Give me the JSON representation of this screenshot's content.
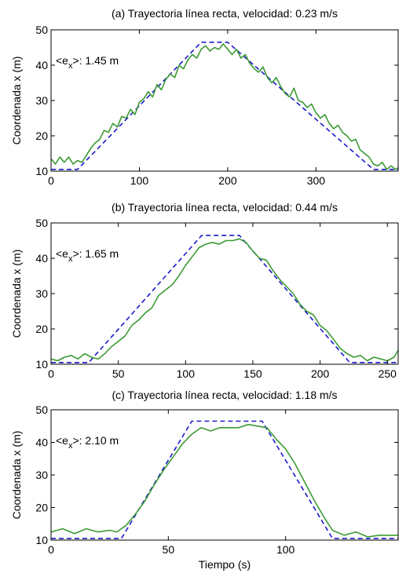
{
  "colors": {
    "reference": "#1a1acc",
    "measured": "#3a9a32",
    "axis": "#000000",
    "background": "#ffffff"
  },
  "chart_data": [
    {
      "type": "line",
      "title": "(a) Trayectoria línea recta, velocidad: 0.23 m/s",
      "ylabel": "Coordenada x (m)",
      "xlabel": "",
      "xlim": [
        0,
        393
      ],
      "ylim": [
        10,
        50
      ],
      "xticks": [
        0,
        100,
        200,
        300
      ],
      "yticks": [
        10,
        20,
        30,
        40,
        50
      ],
      "grid": false,
      "annotation": {
        "prefix": "<e",
        "sub": "x",
        "suffix": ">: 1.45 m"
      },
      "reference_series": {
        "style": "dashed",
        "x": [
          0,
          30,
          170,
          200,
          365,
          393
        ],
        "y": [
          10.5,
          10.5,
          46.5,
          46.5,
          10.5,
          10.5
        ]
      },
      "measured_series": {
        "style": "solid",
        "x": [
          0,
          5,
          10,
          15,
          20,
          25,
          30,
          35,
          40,
          45,
          50,
          55,
          60,
          65,
          70,
          75,
          80,
          85,
          90,
          95,
          100,
          105,
          110,
          115,
          120,
          125,
          130,
          135,
          140,
          145,
          150,
          155,
          160,
          165,
          170,
          175,
          180,
          185,
          190,
          195,
          200,
          205,
          210,
          215,
          220,
          225,
          230,
          235,
          240,
          245,
          250,
          255,
          260,
          265,
          270,
          275,
          280,
          285,
          290,
          295,
          300,
          305,
          310,
          315,
          320,
          325,
          330,
          335,
          340,
          345,
          350,
          355,
          360,
          365,
          370,
          375,
          380,
          385,
          390,
          393
        ],
        "y": [
          13.5,
          12.0,
          14.0,
          12.5,
          14.0,
          12.0,
          13.0,
          12.5,
          14.5,
          16.5,
          18.0,
          19.0,
          21.5,
          21.0,
          23.5,
          22.5,
          25.5,
          25.0,
          27.5,
          26.0,
          29.5,
          30.5,
          32.5,
          31.0,
          34.5,
          33.0,
          36.0,
          37.5,
          36.5,
          40.0,
          39.0,
          41.5,
          43.0,
          42.0,
          44.5,
          45.5,
          44.0,
          45.0,
          44.5,
          46.0,
          44.5,
          43.0,
          44.5,
          42.0,
          43.0,
          40.5,
          39.0,
          38.0,
          39.5,
          36.5,
          35.0,
          36.5,
          34.0,
          32.0,
          31.0,
          33.5,
          30.0,
          29.5,
          28.0,
          29.0,
          26.5,
          25.0,
          26.0,
          23.5,
          22.0,
          23.0,
          21.0,
          20.0,
          18.5,
          19.0,
          16.0,
          15.0,
          14.0,
          12.0,
          11.5,
          12.5,
          10.5,
          11.5,
          10.5,
          11.0
        ]
      }
    },
    {
      "type": "line",
      "title": "(b) Trayectoria línea recta, velocidad: 0.44 m/s",
      "ylabel": "Coordenada x (m)",
      "xlabel": "",
      "xlim": [
        0,
        258
      ],
      "ylim": [
        10,
        50
      ],
      "xticks": [
        0,
        50,
        100,
        150,
        200,
        250
      ],
      "yticks": [
        10,
        20,
        30,
        40,
        50
      ],
      "grid": false,
      "annotation": {
        "prefix": "<e",
        "sub": "x",
        "suffix": ">: 1.65 m"
      },
      "reference_series": {
        "style": "dashed",
        "x": [
          0,
          28,
          112,
          140,
          222,
          258
        ],
        "y": [
          10.5,
          10.5,
          46.5,
          46.5,
          10.5,
          10.5
        ]
      },
      "measured_series": {
        "style": "solid",
        "x": [
          0,
          5,
          10,
          15,
          20,
          25,
          30,
          35,
          40,
          45,
          50,
          55,
          60,
          65,
          70,
          75,
          80,
          85,
          90,
          95,
          100,
          105,
          110,
          115,
          120,
          125,
          130,
          135,
          140,
          145,
          150,
          155,
          160,
          165,
          170,
          175,
          180,
          185,
          190,
          195,
          200,
          205,
          210,
          215,
          220,
          225,
          230,
          235,
          240,
          245,
          250,
          255,
          258
        ],
        "y": [
          11.5,
          11.0,
          12.0,
          12.5,
          11.5,
          13.0,
          12.0,
          11.5,
          13.0,
          15.0,
          16.5,
          18.0,
          21.0,
          22.5,
          24.5,
          26.0,
          29.5,
          31.0,
          32.5,
          35.0,
          38.0,
          40.5,
          43.0,
          44.0,
          44.5,
          44.0,
          45.0,
          45.0,
          45.5,
          44.5,
          42.0,
          40.0,
          39.5,
          36.5,
          34.0,
          32.0,
          30.0,
          27.0,
          25.0,
          24.0,
          21.0,
          19.5,
          17.0,
          14.5,
          13.0,
          12.0,
          12.5,
          11.0,
          12.0,
          11.5,
          11.0,
          12.0,
          14.0
        ]
      }
    },
    {
      "type": "line",
      "title": "(c) Trayectoria línea recta, velocidad: 1.18 m/s",
      "ylabel": "Coordenada x (m)",
      "xlabel": "Tiempo (s)",
      "xlim": [
        0,
        148
      ],
      "ylim": [
        10,
        50
      ],
      "xticks": [
        0,
        50,
        100
      ],
      "yticks": [
        10,
        20,
        30,
        40,
        50
      ],
      "grid": false,
      "annotation": {
        "prefix": "<e",
        "sub": "x",
        "suffix": ">: 2.10 m"
      },
      "reference_series": {
        "style": "dashed",
        "x": [
          0,
          30,
          60,
          90,
          120,
          148
        ],
        "y": [
          10.5,
          10.5,
          46.5,
          46.5,
          10.5,
          10.5
        ]
      },
      "measured_series": {
        "style": "solid",
        "x": [
          0,
          5,
          10,
          15,
          20,
          25,
          28,
          32,
          36,
          40,
          44,
          48,
          52,
          56,
          60,
          64,
          68,
          72,
          76,
          80,
          84,
          88,
          92,
          96,
          100,
          104,
          108,
          112,
          116,
          120,
          125,
          130,
          135,
          140,
          148
        ],
        "y": [
          12.5,
          13.5,
          12.0,
          13.5,
          12.5,
          13.0,
          12.5,
          14.5,
          18.0,
          22.0,
          27.0,
          31.5,
          35.5,
          39.5,
          42.5,
          44.5,
          43.5,
          44.5,
          44.5,
          44.5,
          45.5,
          45.0,
          44.5,
          41.0,
          38.0,
          33.5,
          28.0,
          22.5,
          17.5,
          13.0,
          11.5,
          12.5,
          11.0,
          11.5,
          11.5
        ]
      }
    }
  ]
}
